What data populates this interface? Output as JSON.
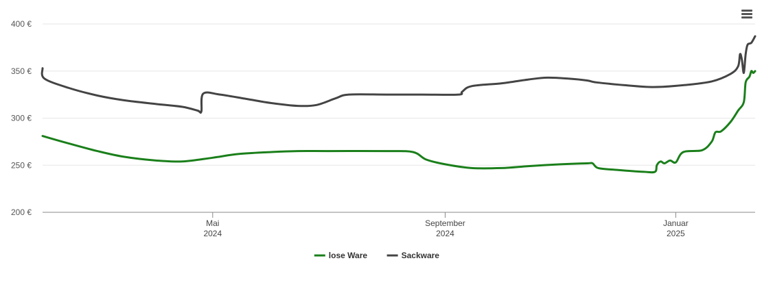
{
  "chart_data": {
    "type": "line",
    "x_range": [
      "2024-02-01",
      "2025-02-12"
    ],
    "ylim": [
      200,
      400
    ],
    "y_ticks": [
      200,
      250,
      300,
      350,
      400
    ],
    "y_tick_labels": [
      "200 €",
      "250 €",
      "300 €",
      "350 €",
      "400 €"
    ],
    "x_ticks": [
      {
        "date": "2024-05-01",
        "line1": "Mai",
        "line2": "2024"
      },
      {
        "date": "2024-09-01",
        "line1": "September",
        "line2": "2024"
      },
      {
        "date": "2025-01-01",
        "line1": "Januar",
        "line2": "2025"
      }
    ],
    "grid": true,
    "legend_position": "bottom-center",
    "series": [
      {
        "name": "lose Ware",
        "color": "#1a7f1a",
        "points": [
          [
            "2024-02-01",
            281
          ],
          [
            "2024-02-15",
            273
          ],
          [
            "2024-03-01",
            265
          ],
          [
            "2024-03-15",
            259
          ],
          [
            "2024-04-01",
            255
          ],
          [
            "2024-04-15",
            254
          ],
          [
            "2024-05-01",
            258
          ],
          [
            "2024-05-15",
            262
          ],
          [
            "2024-06-01",
            264
          ],
          [
            "2024-06-15",
            265
          ],
          [
            "2024-07-01",
            265
          ],
          [
            "2024-08-01",
            265
          ],
          [
            "2024-08-15",
            264
          ],
          [
            "2024-08-22",
            256
          ],
          [
            "2024-09-01",
            251
          ],
          [
            "2024-09-15",
            247
          ],
          [
            "2024-10-01",
            247
          ],
          [
            "2024-10-15",
            249
          ],
          [
            "2024-11-01",
            251
          ],
          [
            "2024-11-15",
            252
          ],
          [
            "2024-11-18",
            252
          ],
          [
            "2024-11-21",
            247
          ],
          [
            "2024-12-01",
            245
          ],
          [
            "2024-12-15",
            243
          ],
          [
            "2024-12-21",
            243
          ],
          [
            "2024-12-22",
            250
          ],
          [
            "2024-12-24",
            254
          ],
          [
            "2024-12-26",
            252
          ],
          [
            "2024-12-29",
            255
          ],
          [
            "2025-01-01",
            253
          ],
          [
            "2025-01-05",
            264
          ],
          [
            "2025-01-15",
            266
          ],
          [
            "2025-01-20",
            275
          ],
          [
            "2025-01-22",
            285
          ],
          [
            "2025-01-25",
            286
          ],
          [
            "2025-01-30",
            296
          ],
          [
            "2025-02-03",
            308
          ],
          [
            "2025-02-06",
            317
          ],
          [
            "2025-02-07",
            338
          ],
          [
            "2025-02-09",
            344
          ],
          [
            "2025-02-10",
            350
          ],
          [
            "2025-02-11",
            348
          ],
          [
            "2025-02-12",
            350
          ]
        ]
      },
      {
        "name": "Sackware",
        "color": "#444444",
        "points": [
          [
            "2024-02-01",
            353
          ],
          [
            "2024-02-02",
            342
          ],
          [
            "2024-02-15",
            332
          ],
          [
            "2024-03-01",
            324
          ],
          [
            "2024-03-15",
            319
          ],
          [
            "2024-04-01",
            315
          ],
          [
            "2024-04-15",
            312
          ],
          [
            "2024-04-23",
            308
          ],
          [
            "2024-04-25",
            307
          ],
          [
            "2024-04-26",
            326
          ],
          [
            "2024-05-05",
            325
          ],
          [
            "2024-05-20",
            320
          ],
          [
            "2024-06-01",
            316
          ],
          [
            "2024-06-15",
            313
          ],
          [
            "2024-06-25",
            314
          ],
          [
            "2024-07-05",
            321
          ],
          [
            "2024-07-12",
            325
          ],
          [
            "2024-08-01",
            325
          ],
          [
            "2024-08-20",
            325
          ],
          [
            "2024-09-08",
            325
          ],
          [
            "2024-09-10",
            328
          ],
          [
            "2024-09-15",
            334
          ],
          [
            "2024-10-01",
            337
          ],
          [
            "2024-10-15",
            341
          ],
          [
            "2024-10-25",
            343
          ],
          [
            "2024-11-05",
            342
          ],
          [
            "2024-11-15",
            340
          ],
          [
            "2024-11-20",
            338
          ],
          [
            "2024-12-05",
            335
          ],
          [
            "2024-12-20",
            333
          ],
          [
            "2025-01-05",
            335
          ],
          [
            "2025-01-20",
            339
          ],
          [
            "2025-01-30",
            347
          ],
          [
            "2025-02-03",
            355
          ],
          [
            "2025-02-04",
            368
          ],
          [
            "2025-02-05",
            362
          ],
          [
            "2025-02-06",
            348
          ],
          [
            "2025-02-07",
            368
          ],
          [
            "2025-02-08",
            378
          ],
          [
            "2025-02-10",
            380
          ],
          [
            "2025-02-12",
            387
          ]
        ]
      }
    ]
  }
}
